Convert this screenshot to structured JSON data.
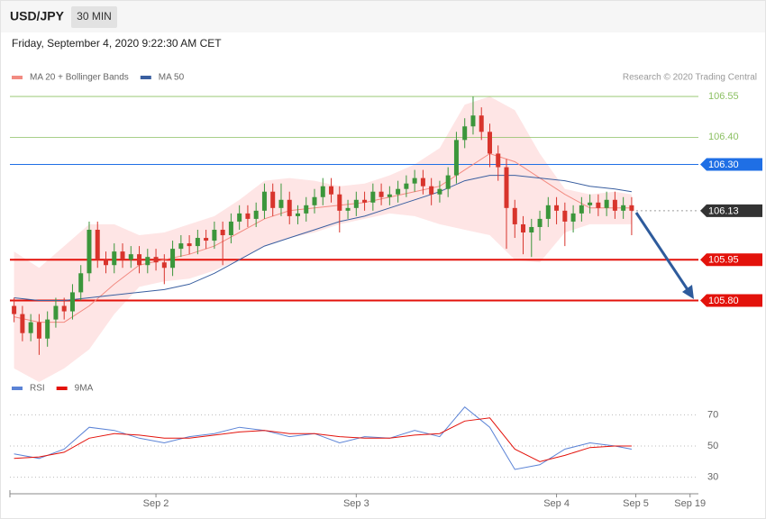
{
  "header": {
    "symbol": "USD/JPY",
    "timeframe": "30 MIN",
    "date": "Friday, September 4, 2020 9:22:30 AM CET",
    "credit": "Research © 2020 Trading Central"
  },
  "chart_data": [
    {
      "type": "candlestick",
      "xlim": [
        -0.5,
        82
      ],
      "ylim": [
        105.52,
        106.58
      ],
      "legend": "top-left",
      "candles": {
        "x": [
          0,
          1,
          2,
          3,
          4,
          5,
          6,
          7,
          8,
          9,
          10,
          11,
          12,
          13,
          14,
          15,
          16,
          17,
          18,
          19,
          20,
          21,
          22,
          23,
          24,
          25,
          26,
          27,
          28,
          29,
          30,
          31,
          32,
          33,
          34,
          35,
          36,
          37,
          38,
          39,
          40,
          41,
          42,
          43,
          44,
          45,
          46,
          47,
          48,
          49,
          50,
          51,
          52,
          53,
          54,
          55,
          56,
          57,
          58,
          59,
          60,
          61,
          62,
          63,
          64,
          65,
          66,
          67,
          68,
          69,
          70,
          71,
          72,
          73,
          74
        ],
        "open": [
          105.78,
          105.75,
          105.68,
          105.72,
          105.66,
          105.73,
          105.78,
          105.76,
          105.83,
          105.9,
          106.06,
          105.95,
          105.93,
          105.98,
          105.95,
          105.97,
          105.93,
          105.96,
          105.94,
          105.92,
          105.99,
          106.01,
          106.0,
          106.03,
          106.02,
          106.06,
          106.04,
          106.09,
          106.12,
          106.1,
          106.13,
          106.2,
          106.14,
          106.17,
          106.11,
          106.12,
          106.15,
          106.18,
          106.22,
          106.19,
          106.13,
          106.14,
          106.17,
          106.16,
          106.2,
          106.18,
          106.19,
          106.21,
          106.23,
          106.25,
          106.22,
          106.19,
          106.21,
          106.26,
          106.39,
          106.44,
          106.48,
          106.42,
          106.34,
          106.29,
          106.14,
          106.08,
          106.05,
          106.07,
          106.1,
          106.15,
          106.13,
          106.09,
          106.12,
          106.15,
          106.16,
          106.14,
          106.17,
          106.13,
          106.15
        ],
        "high": [
          105.81,
          105.78,
          105.75,
          105.75,
          105.76,
          105.81,
          105.81,
          105.86,
          105.93,
          106.09,
          106.09,
          105.98,
          106.01,
          106.01,
          106.0,
          106.0,
          105.99,
          105.99,
          105.97,
          106.02,
          106.04,
          106.04,
          106.06,
          106.06,
          106.09,
          106.09,
          106.12,
          106.15,
          106.15,
          106.16,
          106.23,
          106.23,
          106.23,
          106.2,
          106.15,
          106.18,
          106.21,
          106.25,
          106.25,
          106.22,
          106.17,
          106.2,
          106.2,
          106.23,
          106.23,
          106.22,
          106.24,
          106.26,
          106.28,
          106.28,
          106.25,
          106.24,
          106.29,
          106.42,
          106.47,
          106.55,
          106.51,
          106.45,
          106.37,
          106.32,
          106.17,
          106.11,
          106.1,
          106.13,
          106.18,
          106.18,
          106.16,
          106.15,
          106.18,
          106.19,
          106.19,
          106.2,
          106.2,
          106.18,
          106.18
        ],
        "low": [
          105.72,
          105.65,
          105.65,
          105.6,
          105.63,
          105.7,
          105.73,
          105.73,
          105.8,
          105.87,
          105.92,
          105.9,
          105.9,
          105.92,
          105.92,
          105.9,
          105.9,
          105.91,
          105.86,
          105.89,
          105.96,
          105.97,
          105.97,
          105.99,
          105.99,
          105.93,
          106.01,
          106.06,
          106.07,
          106.07,
          106.1,
          106.11,
          106.11,
          106.08,
          106.08,
          106.09,
          106.12,
          106.15,
          106.16,
          106.05,
          106.1,
          106.11,
          106.13,
          106.13,
          106.15,
          106.15,
          106.16,
          106.18,
          106.2,
          106.19,
          106.15,
          106.16,
          106.18,
          106.23,
          106.36,
          106.41,
          106.39,
          106.29,
          106.24,
          105.99,
          106.03,
          105.97,
          105.96,
          106.02,
          106.07,
          106.08,
          106.0,
          106.05,
          106.09,
          106.12,
          106.11,
          106.11,
          106.1,
          106.1,
          106.04
        ],
        "close": [
          105.75,
          105.68,
          105.72,
          105.66,
          105.73,
          105.78,
          105.76,
          105.83,
          105.9,
          106.06,
          105.95,
          105.93,
          105.98,
          105.95,
          105.97,
          105.93,
          105.96,
          105.94,
          105.92,
          105.99,
          106.01,
          106.0,
          106.03,
          106.02,
          106.06,
          106.04,
          106.09,
          106.12,
          106.1,
          106.13,
          106.2,
          106.14,
          106.17,
          106.11,
          106.12,
          106.15,
          106.18,
          106.22,
          106.19,
          106.13,
          106.14,
          106.17,
          106.16,
          106.2,
          106.18,
          106.19,
          106.21,
          106.23,
          106.25,
          106.22,
          106.19,
          106.21,
          106.26,
          106.39,
          106.44,
          106.48,
          106.42,
          106.34,
          106.29,
          106.14,
          106.08,
          106.05,
          106.07,
          106.1,
          106.15,
          106.13,
          106.09,
          106.12,
          106.15,
          106.16,
          106.14,
          106.17,
          106.13,
          106.15,
          106.13
        ],
        "up_color": "#3b963b",
        "down_color": "#d8342c"
      },
      "x": [
        0,
        3,
        6,
        9,
        12,
        15,
        18,
        21,
        24,
        27,
        30,
        33,
        36,
        39,
        42,
        45,
        48,
        51,
        54,
        57,
        60,
        63,
        66,
        69,
        72,
        74
      ],
      "series": [
        {
          "name": "MA 20 + Bollinger Bands",
          "color": "#f28b82",
          "band_color": "#fddcdc",
          "values": [
            105.74,
            105.72,
            105.72,
            105.78,
            105.86,
            105.93,
            105.95,
            105.97,
            106.0,
            106.05,
            106.1,
            106.13,
            106.14,
            106.15,
            106.16,
            106.18,
            106.2,
            106.22,
            106.28,
            106.34,
            106.31,
            106.25,
            106.19,
            106.14,
            106.14,
            106.14
          ],
          "upper": [
            105.98,
            105.92,
            106.0,
            106.08,
            106.08,
            106.04,
            106.05,
            106.08,
            106.11,
            106.17,
            106.24,
            106.25,
            106.24,
            106.22,
            106.23,
            106.26,
            106.3,
            106.36,
            106.52,
            106.55,
            106.5,
            106.34,
            106.21,
            106.19,
            106.2,
            106.19
          ],
          "lower": [
            105.55,
            105.5,
            105.55,
            105.62,
            105.75,
            105.85,
            105.87,
            105.88,
            105.91,
            105.95,
            106.0,
            106.03,
            106.05,
            106.08,
            106.1,
            106.12,
            106.11,
            106.08,
            106.06,
            106.04,
            105.95,
            105.94,
            106.05,
            106.08,
            106.08,
            106.08
          ]
        },
        {
          "name": "MA 50",
          "color": "#3a5fa0",
          "values": [
            105.81,
            105.8,
            105.8,
            105.81,
            105.82,
            105.83,
            105.84,
            105.86,
            105.9,
            105.95,
            106.0,
            106.03,
            106.06,
            106.09,
            106.11,
            106.14,
            106.17,
            106.2,
            106.24,
            106.26,
            106.26,
            106.25,
            106.24,
            106.22,
            106.21,
            106.2
          ]
        }
      ],
      "levels": [
        {
          "value": 106.55,
          "color": "#8cc063",
          "width": 0.8,
          "tag": false
        },
        {
          "value": 106.4,
          "label": "106.40",
          "color": "#8cc063",
          "width": 0.8,
          "tag": false
        },
        {
          "value": 106.3,
          "label": "106.30",
          "color": "#1f6fe5",
          "width": 1,
          "tag": true
        },
        {
          "value": 106.13,
          "color": "#333333",
          "width": 1,
          "tag": true,
          "dash": true
        },
        {
          "value": 105.95,
          "color": "#e3120b",
          "width": 2,
          "tag": true
        },
        {
          "value": 105.8,
          "label": "105.80",
          "color": "#e3120b",
          "width": 2,
          "tag": true
        }
      ]
    },
    {
      "type": "line",
      "xlim": [
        -0.5,
        82
      ],
      "ylim": [
        24,
        76
      ],
      "yticks": [
        30,
        50,
        70
      ],
      "grid": true,
      "legend": "top-left",
      "x": [
        0,
        3,
        6,
        9,
        12,
        15,
        18,
        21,
        24,
        27,
        30,
        33,
        36,
        39,
        42,
        45,
        48,
        51,
        54,
        57,
        60,
        63,
        66,
        69,
        72,
        74
      ],
      "xticks": [
        {
          "value": 17,
          "label": "Sep 2"
        },
        {
          "value": 41,
          "label": "Sep 3"
        },
        {
          "value": 65,
          "label": "Sep 4"
        },
        {
          "value": 74.5,
          "label": "Sep 5"
        },
        {
          "value": 81,
          "label": "Sep 19"
        }
      ],
      "series": [
        {
          "name": "RSI",
          "color": "#5b83d6",
          "values": [
            45,
            42,
            48,
            62,
            60,
            55,
            52,
            56,
            58,
            62,
            60,
            56,
            58,
            52,
            56,
            55,
            60,
            56,
            75,
            62,
            35,
            38,
            48,
            52,
            50,
            48
          ]
        },
        {
          "name": "9MA",
          "color": "#e3120b",
          "values": [
            42,
            43,
            46,
            55,
            58,
            57,
            55,
            55,
            57,
            59,
            60,
            58,
            58,
            56,
            55,
            55,
            57,
            58,
            66,
            68,
            48,
            40,
            44,
            49,
            50,
            50
          ]
        }
      ]
    }
  ]
}
